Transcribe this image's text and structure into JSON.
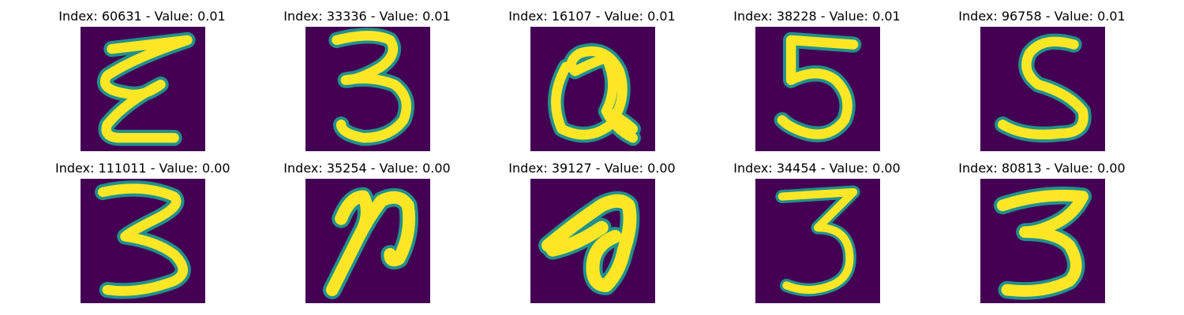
{
  "chart_data": {
    "type": "heatmap",
    "colormap": "viridis",
    "colors": {
      "background": "#440154",
      "ink": "#fde725",
      "edge": "#21918c"
    },
    "rows": [
      [
        {
          "title": "Index: 60631 - Value: 0.01",
          "index": 60631,
          "value": 0.01
        },
        {
          "title": "Index: 33336 - Value: 0.01",
          "index": 33336,
          "value": 0.01
        },
        {
          "title": "Index: 16107 - Value: 0.01",
          "index": 16107,
          "value": 0.01
        },
        {
          "title": "Index: 38228 - Value: 0.01",
          "index": 38228,
          "value": 0.01
        },
        {
          "title": "Index: 96758 - Value: 0.01",
          "index": 96758,
          "value": 0.01
        }
      ],
      [
        {
          "title": "Index: 111011 - Value: 0.00",
          "index": 111011,
          "value": 0.0
        },
        {
          "title": "Index: 35254 - Value: 0.00",
          "index": 35254,
          "value": 0.0
        },
        {
          "title": "Index: 39127 - Value: 0.00",
          "index": 39127,
          "value": 0.0
        },
        {
          "title": "Index: 34454 - Value: 0.00",
          "index": 34454,
          "value": 0.0
        },
        {
          "title": "Index: 80813 - Value: 0.00",
          "index": 80813,
          "value": 0.0
        }
      ]
    ]
  }
}
